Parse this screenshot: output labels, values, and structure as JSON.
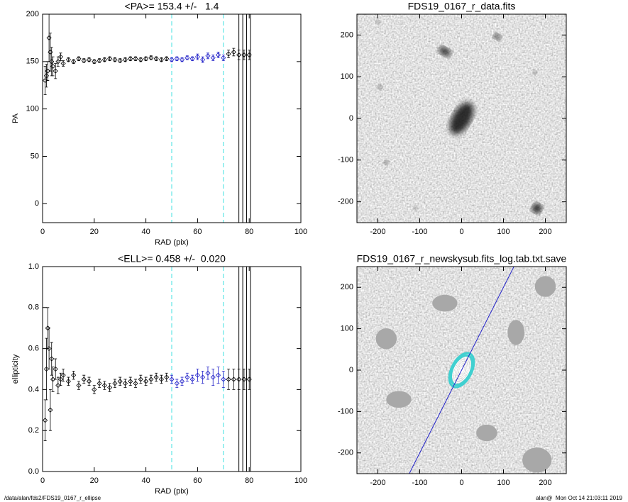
{
  "chart_data": [
    {
      "type": "scatter",
      "title": "<PA>= 153.4 +/-   1.4",
      "x_label": "RAD (pix)",
      "y_label": "PA",
      "xlim": [
        0,
        100
      ],
      "ylim": [
        -20,
        200
      ],
      "xticks": [
        0,
        20,
        40,
        60,
        80,
        100
      ],
      "yticks": [
        0,
        50,
        100,
        150,
        200
      ],
      "x": [
        1,
        1.5,
        2,
        2.5,
        3,
        3.5,
        4,
        5,
        6,
        7,
        8,
        10,
        12,
        14,
        16,
        18,
        20,
        22,
        24,
        26,
        28,
        30,
        32,
        34,
        36,
        38,
        40,
        42,
        44,
        46,
        48,
        50,
        52,
        54,
        56,
        58,
        60,
        62,
        64,
        66,
        68,
        70,
        72,
        74,
        76,
        78,
        80
      ],
      "values": [
        130,
        135,
        140,
        175,
        160,
        150,
        145,
        140,
        150,
        155,
        148,
        152,
        150,
        153,
        151,
        152,
        150,
        151,
        152,
        153,
        152,
        151,
        152,
        153,
        153,
        152,
        153,
        154,
        153,
        152,
        153,
        152,
        153,
        152,
        154,
        153,
        155,
        152,
        156,
        154,
        157,
        154,
        158,
        160,
        157,
        157,
        157
      ],
      "errors": [
        15,
        12,
        10,
        25,
        20,
        15,
        10,
        8,
        5,
        4,
        3,
        2,
        2,
        2,
        2,
        2,
        2,
        2,
        2,
        2,
        2,
        2,
        2,
        2,
        2,
        2,
        2,
        2,
        2,
        2,
        2,
        2,
        2,
        2,
        2,
        2,
        3,
        3,
        3,
        3,
        3,
        3,
        4,
        4,
        5,
        5,
        5
      ],
      "color": "#000000",
      "fit_color": "#2020c8",
      "fit_range": [
        50,
        70
      ],
      "range_color": "#40e0e0",
      "outer_radii": [
        76,
        77.5,
        79,
        80.5
      ]
    },
    {
      "type": "image",
      "title": "FDS19_0167_r_data.fits",
      "xlim": [
        -250,
        250
      ],
      "ylim": [
        -250,
        250
      ],
      "xticks": [
        -200,
        -100,
        0,
        100,
        200
      ],
      "yticks": [
        -200,
        -100,
        0,
        100,
        200
      ]
    },
    {
      "type": "scatter",
      "title": "<ELL>= 0.458 +/-  0.020",
      "x_label": "RAD (pix)",
      "y_label": "ellipticity",
      "xlim": [
        0,
        100
      ],
      "ylim": [
        0,
        1
      ],
      "xticks": [
        0,
        20,
        40,
        60,
        80,
        100
      ],
      "yticks": [
        {
          "value": 0,
          "label": "0.0"
        },
        0.2,
        0.4,
        0.6,
        0.8,
        {
          "value": 1,
          "label": "1.0"
        }
      ],
      "x": [
        1,
        1.5,
        2,
        2.5,
        3,
        3.5,
        4,
        5,
        6,
        7,
        8,
        10,
        12,
        14,
        16,
        18,
        20,
        22,
        24,
        26,
        28,
        30,
        32,
        34,
        36,
        38,
        40,
        42,
        44,
        46,
        48,
        50,
        52,
        54,
        56,
        58,
        60,
        62,
        64,
        66,
        68,
        70,
        72,
        74,
        76,
        78,
        80
      ],
      "values": [
        0.25,
        0.5,
        0.7,
        0.6,
        0.3,
        0.55,
        0.45,
        0.5,
        0.42,
        0.45,
        0.47,
        0.44,
        0.47,
        0.42,
        0.45,
        0.44,
        0.4,
        0.43,
        0.42,
        0.41,
        0.43,
        0.44,
        0.43,
        0.44,
        0.43,
        0.45,
        0.44,
        0.45,
        0.46,
        0.45,
        0.46,
        0.45,
        0.43,
        0.44,
        0.46,
        0.45,
        0.47,
        0.46,
        0.48,
        0.46,
        0.47,
        0.45,
        0.45,
        0.45,
        0.45,
        0.45,
        0.45
      ],
      "errors": [
        0.1,
        0.15,
        0.1,
        0.1,
        0.1,
        0.08,
        0.06,
        0.05,
        0.04,
        0.03,
        0.03,
        0.02,
        0.02,
        0.02,
        0.02,
        0.02,
        0.02,
        0.02,
        0.02,
        0.02,
        0.02,
        0.02,
        0.02,
        0.02,
        0.02,
        0.02,
        0.02,
        0.02,
        0.02,
        0.02,
        0.02,
        0.02,
        0.02,
        0.02,
        0.02,
        0.02,
        0.03,
        0.03,
        0.03,
        0.04,
        0.04,
        0.04,
        0.05,
        0.05,
        0.05,
        0.05,
        0.05
      ],
      "color": "#000000",
      "fit_color": "#2020c8",
      "fit_range": [
        50,
        70
      ],
      "range_color": "#40e0e0",
      "outer_radii": [
        76,
        77.5,
        79,
        80.5
      ]
    },
    {
      "type": "image",
      "title": "FDS19_0167_r_newskysub.fits_log.tab.txt.save",
      "xlim": [
        -250,
        250
      ],
      "ylim": [
        -250,
        250
      ],
      "xticks": [
        -200,
        -100,
        0,
        100,
        200
      ],
      "yticks": [
        -200,
        -100,
        0,
        100,
        200
      ]
    }
  ],
  "footer": {
    "left": "/data/alan/fds2/FDS19_0167_r_ellipse",
    "right": "alan@  Mon Oct 14 21:03:11 2019"
  }
}
